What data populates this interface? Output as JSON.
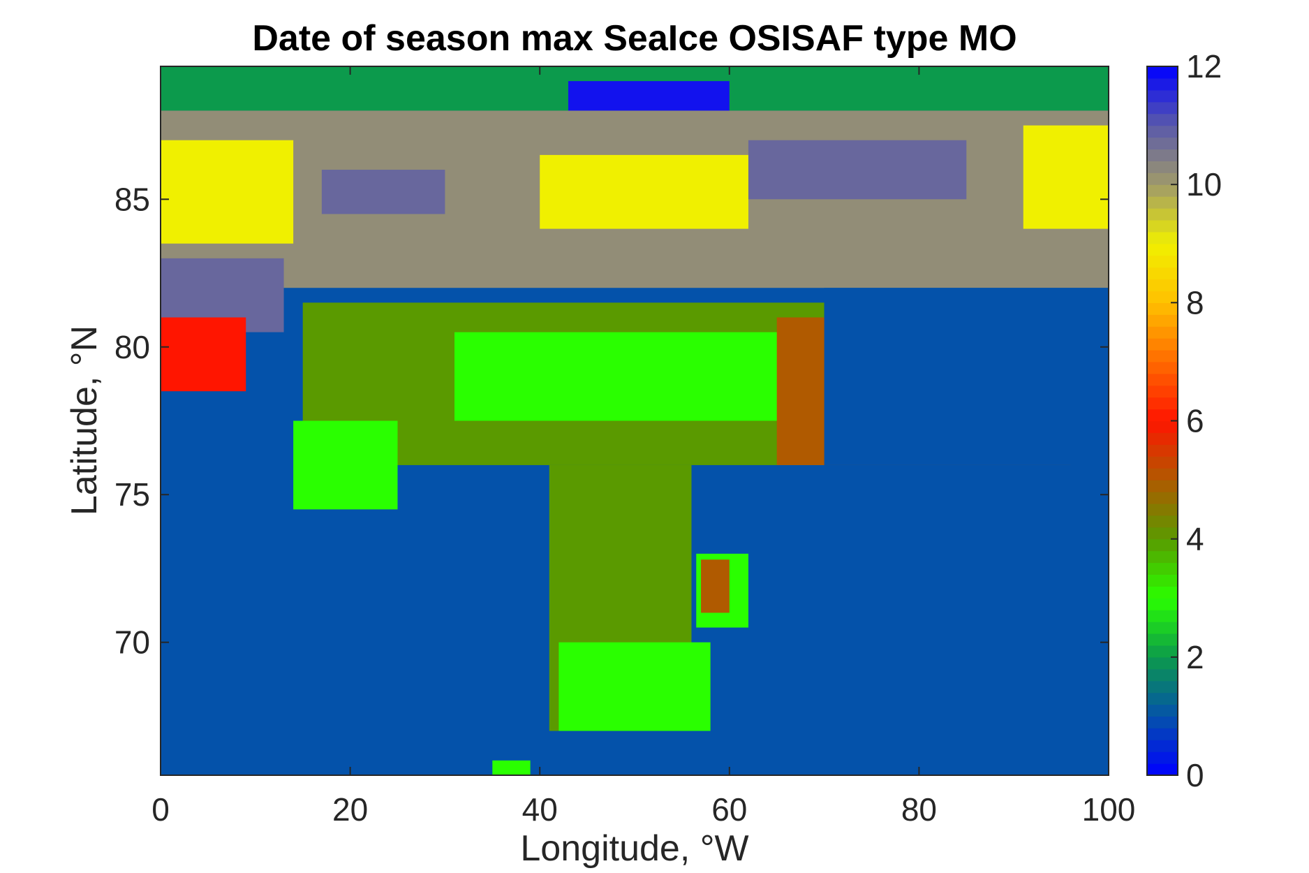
{
  "chart_data": {
    "type": "heatmap",
    "title": "Date of season max SeaIce OSISAF type MO",
    "xlabel": "Longitude, °W",
    "ylabel": "Latitude, °N",
    "xlim": [
      0,
      100
    ],
    "ylim": [
      65.5,
      89.5
    ],
    "xticks": [
      0,
      20,
      40,
      60,
      80,
      100
    ],
    "yticks": [
      70,
      75,
      80,
      85
    ],
    "colorbar": {
      "clim": [
        0,
        12
      ],
      "ticks": [
        0,
        2,
        4,
        6,
        8,
        10,
        12
      ],
      "colormap": "custom (blue → green → olive → brown → red → orange → yellow → khaki → slate → blue)"
    },
    "background_value": 1,
    "regions": [
      {
        "name": "north-pole-strip",
        "value": 2,
        "lon": [
          0,
          100
        ],
        "lat": [
          88,
          89.5
        ]
      },
      {
        "name": "north-polar-blue",
        "value": 11.8,
        "lon": [
          43,
          60
        ],
        "lat": [
          86,
          89
        ]
      },
      {
        "name": "upper-band",
        "value": 10.2,
        "lon": [
          0,
          100
        ],
        "lat": [
          82,
          88
        ]
      },
      {
        "name": "upper-yellow-left",
        "value": 9,
        "lon": [
          0,
          14
        ],
        "lat": [
          83.5,
          87
        ]
      },
      {
        "name": "upper-yellow-mid",
        "value": 9,
        "lon": [
          40,
          62
        ],
        "lat": [
          84,
          86.5
        ]
      },
      {
        "name": "upper-yellow-right",
        "value": 9,
        "lon": [
          91,
          100
        ],
        "lat": [
          84,
          87.5
        ]
      },
      {
        "name": "upper-slate-left",
        "value": 10.8,
        "lon": [
          0,
          13
        ],
        "lat": [
          80.5,
          83
        ]
      },
      {
        "name": "upper-slate-mid",
        "value": 10.8,
        "lon": [
          17,
          30
        ],
        "lat": [
          84.5,
          86
        ]
      },
      {
        "name": "upper-slate-right",
        "value": 10.8,
        "lon": [
          62,
          85
        ],
        "lat": [
          85,
          87
        ]
      },
      {
        "name": "red-edge-left",
        "value": 6,
        "lon": [
          0,
          9
        ],
        "lat": [
          78.5,
          81
        ]
      },
      {
        "name": "atlantic-tongue",
        "value": 4,
        "lon": [
          15,
          70
        ],
        "lat": [
          76,
          81.5
        ]
      },
      {
        "name": "stem",
        "value": 4,
        "lon": [
          41,
          56
        ],
        "lat": [
          67,
          76
        ]
      },
      {
        "name": "green-svalbard",
        "value": 3,
        "lon": [
          14,
          25
        ],
        "lat": [
          74.5,
          77.5
        ]
      },
      {
        "name": "green-fringe",
        "value": 3,
        "lon": [
          31,
          68
        ],
        "lat": [
          77.5,
          80.5
        ]
      },
      {
        "name": "green-base",
        "value": 3,
        "lon": [
          42,
          58
        ],
        "lat": [
          67,
          70
        ]
      },
      {
        "name": "green-blob",
        "value": 3,
        "lon": [
          56.5,
          62
        ],
        "lat": [
          70.5,
          73
        ]
      },
      {
        "name": "green-small",
        "value": 3,
        "lon": [
          35,
          39
        ],
        "lat": [
          65.5,
          66
        ]
      },
      {
        "name": "brown-east",
        "value": 5,
        "lon": [
          65,
          96
        ],
        "lat": [
          76,
          81
        ]
      },
      {
        "name": "brown-blob",
        "value": 5,
        "lon": [
          57,
          60
        ],
        "lat": [
          71,
          72.8
        ]
      },
      {
        "name": "blue-east-sea",
        "value": 1,
        "lon": [
          70,
          100
        ],
        "lat": [
          76,
          82
        ]
      }
    ]
  }
}
